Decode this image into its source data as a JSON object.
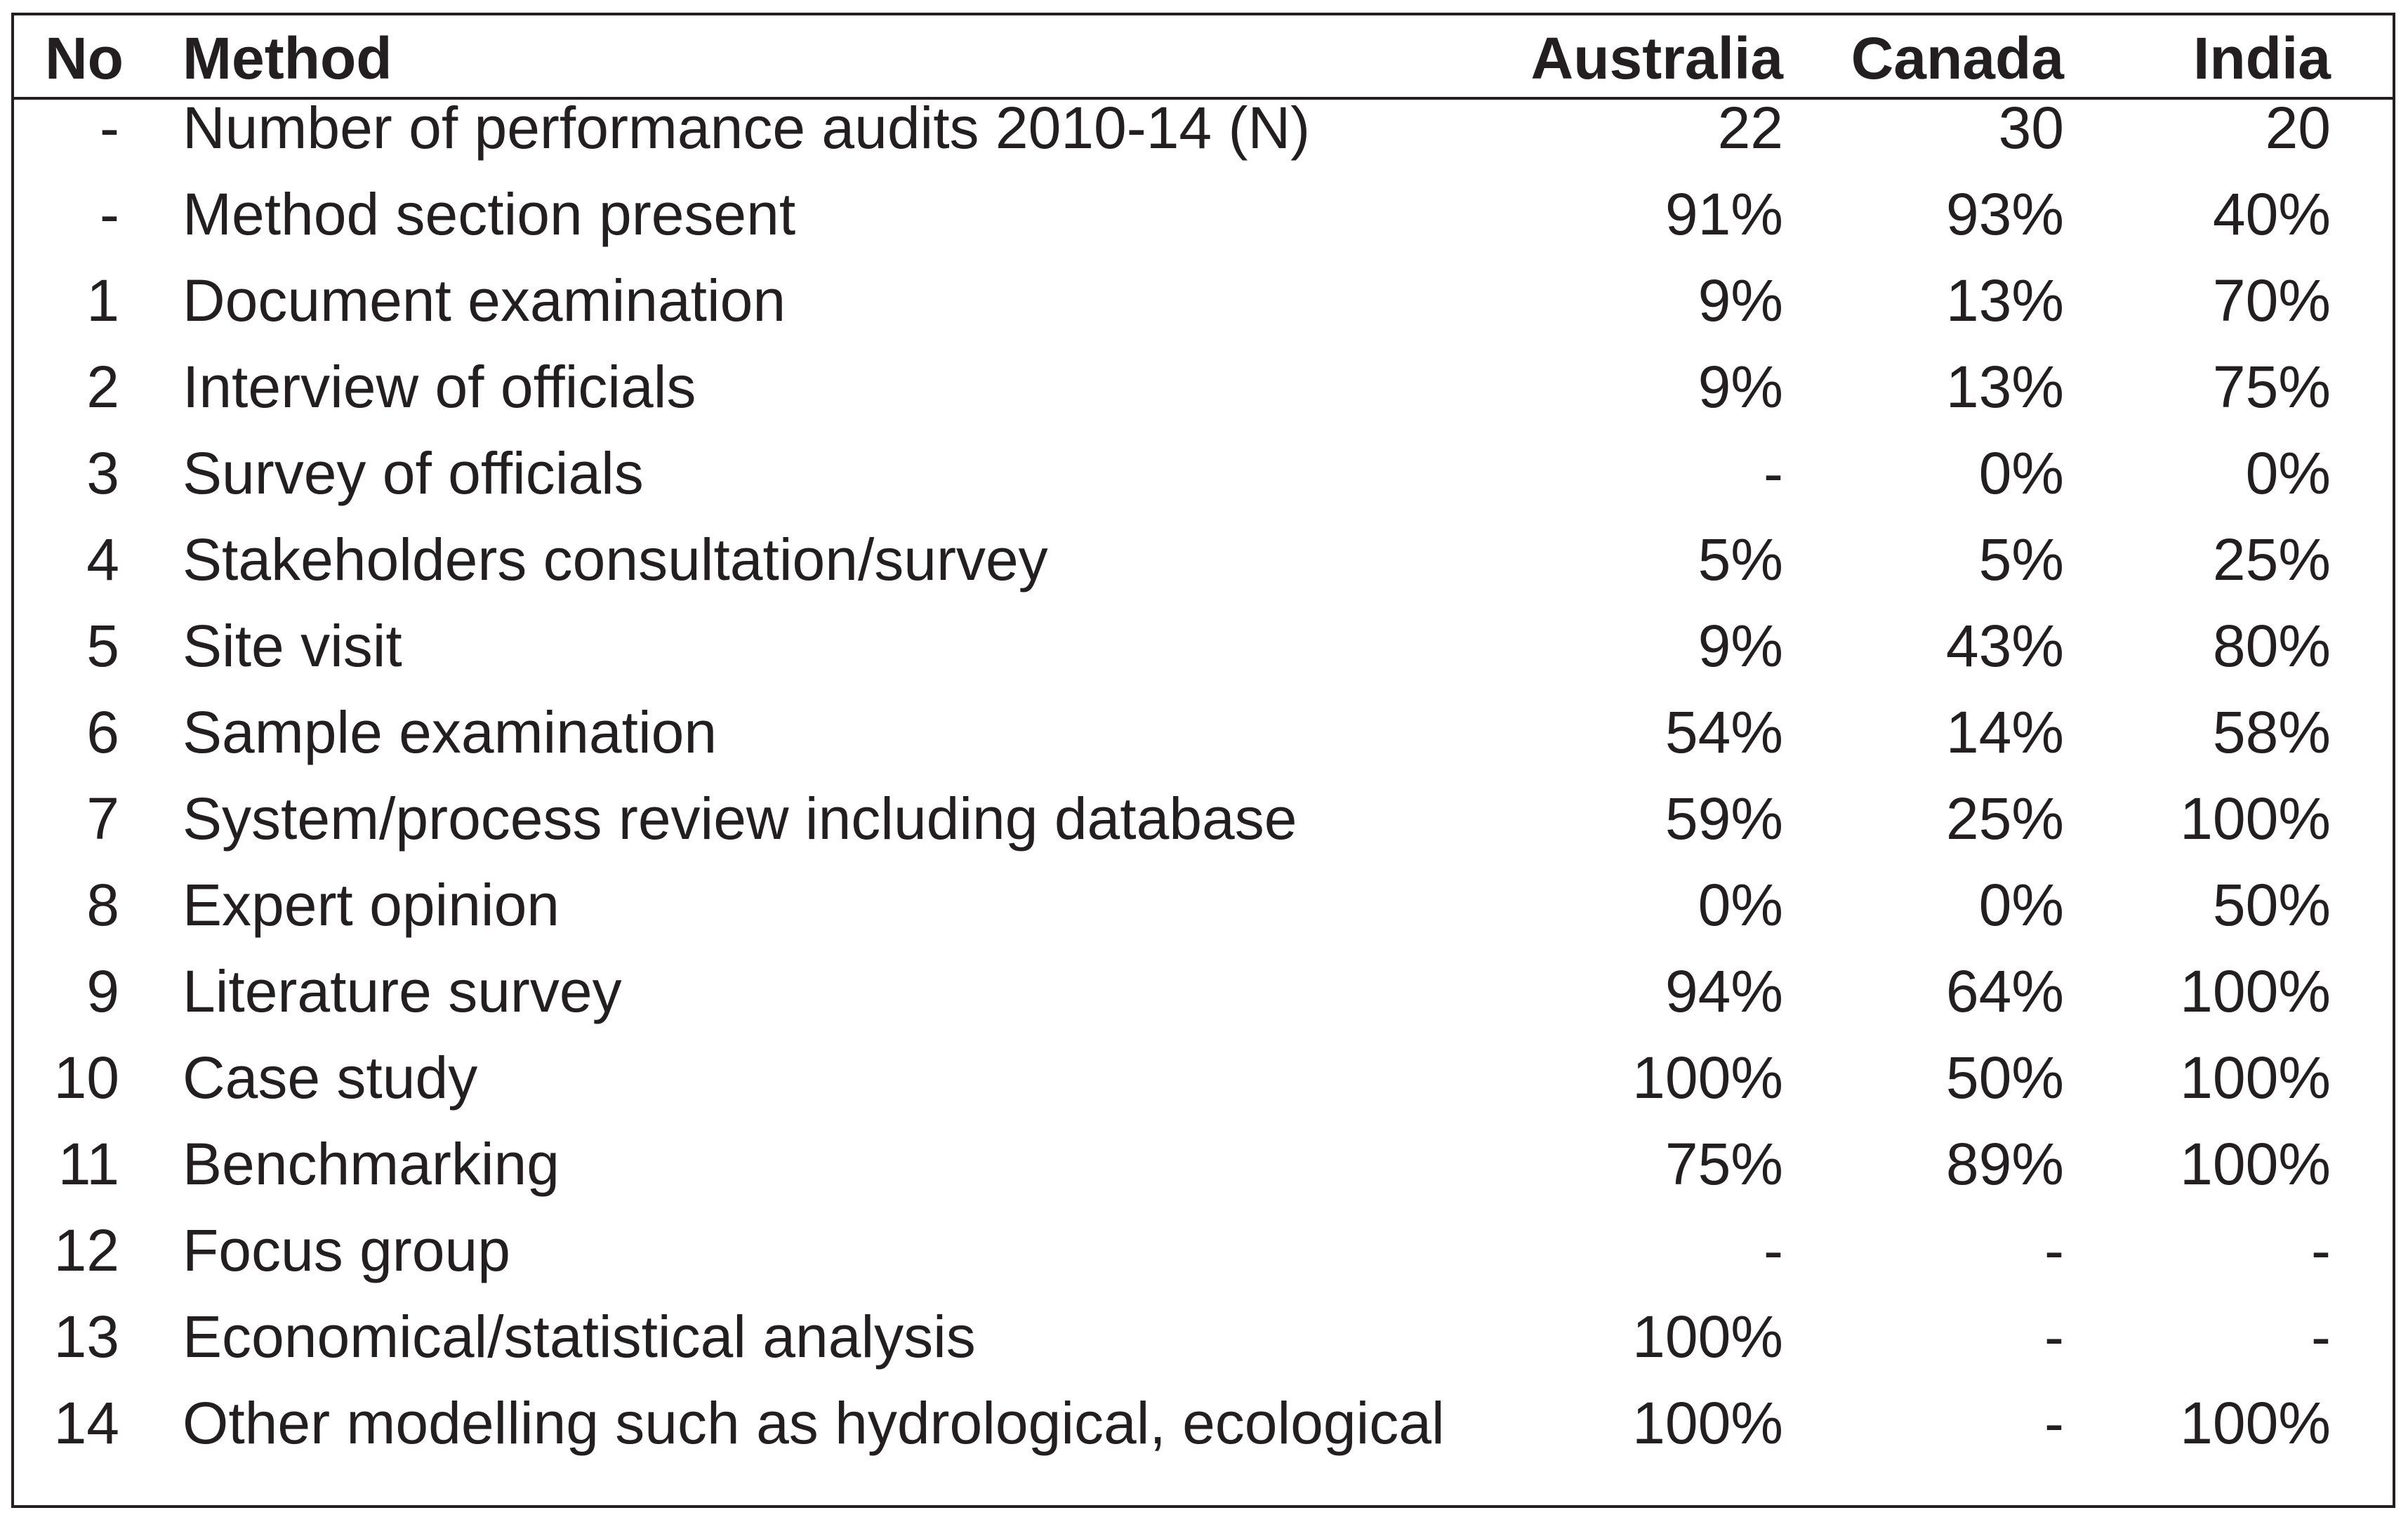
{
  "table": {
    "headers": {
      "no": "No",
      "method": "Method",
      "australia": "Australia",
      "canada": "Canada",
      "india": "India"
    },
    "rows": [
      {
        "no": "-",
        "method": "Number of performance audits 2010-14 (N)",
        "australia": "22",
        "canada": "30",
        "india": "20"
      },
      {
        "no": "-",
        "method": "Method section present",
        "australia": "91%",
        "canada": "93%",
        "india": "40%"
      },
      {
        "no": "1",
        "method": "Document examination",
        "australia": "9%",
        "canada": "13%",
        "india": "70%"
      },
      {
        "no": "2",
        "method": "Interview of officials",
        "australia": "9%",
        "canada": "13%",
        "india": "75%"
      },
      {
        "no": "3",
        "method": "Survey of officials",
        "australia": "-",
        "canada": "0%",
        "india": "0%"
      },
      {
        "no": "4",
        "method": "Stakeholders consultation/survey",
        "australia": "5%",
        "canada": "5%",
        "india": "25%"
      },
      {
        "no": "5",
        "method": "Site visit",
        "australia": "9%",
        "canada": "43%",
        "india": "80%"
      },
      {
        "no": "6",
        "method": "Sample examination",
        "australia": "54%",
        "canada": "14%",
        "india": "58%"
      },
      {
        "no": "7",
        "method": "System/process review including database",
        "australia": "59%",
        "canada": "25%",
        "india": "100%"
      },
      {
        "no": "8",
        "method": "Expert opinion",
        "australia": "0%",
        "canada": "0%",
        "india": "50%"
      },
      {
        "no": "9",
        "method": "Literature survey",
        "australia": "94%",
        "canada": "64%",
        "india": "100%"
      },
      {
        "no": "10",
        "method": "Case study",
        "australia": "100%",
        "canada": "50%",
        "india": "100%"
      },
      {
        "no": "11",
        "method": "Benchmarking",
        "australia": "75%",
        "canada": "89%",
        "india": "100%"
      },
      {
        "no": "12",
        "method": "Focus group",
        "australia": "-",
        "canada": "-",
        "india": "-"
      },
      {
        "no": "13",
        "method": "Economical/statistical analysis",
        "australia": "100%",
        "canada": "-",
        "india": "-"
      },
      {
        "no": "14",
        "method": "Other modelling such as hydrological, ecological",
        "australia": "100%",
        "canada": "-",
        "india": "100%"
      }
    ]
  }
}
